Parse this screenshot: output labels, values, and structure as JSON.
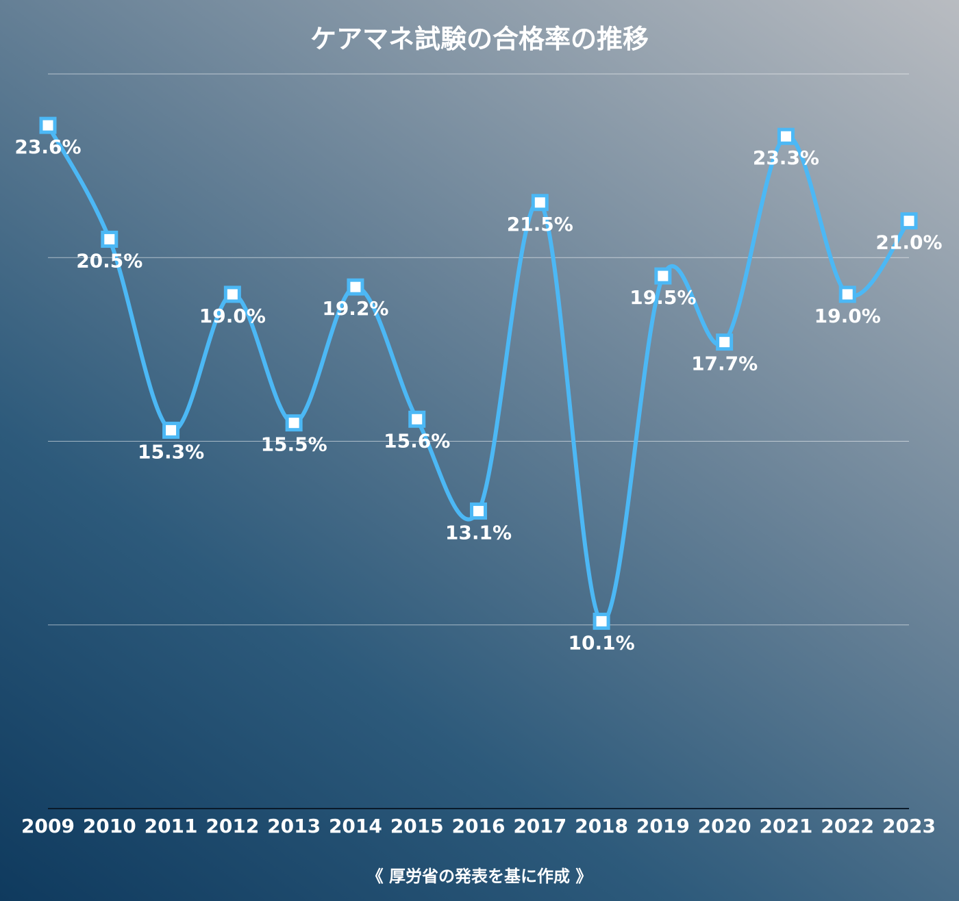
{
  "chart_data": {
    "type": "line",
    "title": "ケアマネ試験の合格率の推移",
    "categories": [
      "2009",
      "2010",
      "2011",
      "2012",
      "2013",
      "2014",
      "2015",
      "2016",
      "2017",
      "2018",
      "2019",
      "2020",
      "2021",
      "2022",
      "2023"
    ],
    "series": [
      {
        "values": [
          23.6,
          20.5,
          15.3,
          19.0,
          15.5,
          19.2,
          15.6,
          13.1,
          21.5,
          10.1,
          19.5,
          17.7,
          23.3,
          19.0,
          21.0
        ],
        "labels": [
          "23.6%",
          "20.5%",
          "15.3%",
          "19.0%",
          "15.5%",
          "19.2%",
          "15.6%",
          "13.1%",
          "21.5%",
          "10.1%",
          "19.5%",
          "17.7%",
          "23.3%",
          "19.0%",
          "21.0%"
        ],
        "color": "#4cb8f5"
      }
    ],
    "ylim": [
      5,
      25
    ],
    "grid": true,
    "xlabel": "",
    "ylabel": "",
    "source_note": "《 厚労省の発表を基に作成 》"
  }
}
